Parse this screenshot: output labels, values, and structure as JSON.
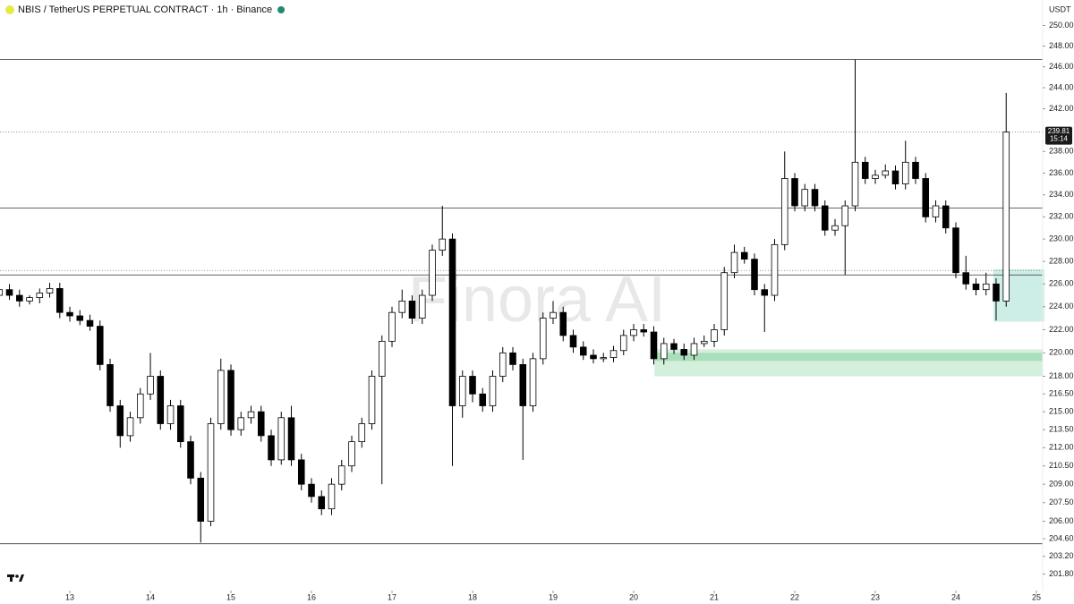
{
  "chart_data": {
    "type": "candlestick",
    "title": "NBIS / TetherUS PERPETUAL CONTRACT · 1h · Binance",
    "watermark": "Finora AI",
    "currency": "USDT",
    "countdown": "15:14",
    "log_scale": true,
    "up_color": "#ffffff",
    "down_color": "#000000",
    "x": [
      12.125,
      12.25,
      12.375,
      12.5,
      12.625,
      12.75,
      12.875,
      13,
      13.125,
      13.25,
      13.375,
      13.5,
      13.625,
      13.75,
      13.875,
      14,
      14.125,
      14.25,
      14.375,
      14.5,
      14.625,
      14.75,
      14.875,
      15,
      15.125,
      15.25,
      15.375,
      15.5,
      15.625,
      15.75,
      15.875,
      16,
      16.125,
      16.25,
      16.375,
      16.5,
      16.625,
      16.75,
      16.875,
      17,
      17.125,
      17.25,
      17.375,
      17.5,
      17.625,
      17.75,
      17.875,
      18,
      18.125,
      18.25,
      18.375,
      18.5,
      18.625,
      18.75,
      18.875,
      19,
      19.125,
      19.25,
      19.375,
      19.5,
      19.625,
      19.75,
      19.875,
      20,
      20.125,
      20.25,
      20.375,
      20.5,
      20.625,
      20.75,
      20.875,
      21,
      21.125,
      21.25,
      21.375,
      21.5,
      21.625,
      21.75,
      21.875,
      22,
      22.125,
      22.25,
      22.375,
      22.5,
      22.625,
      22.75,
      22.875,
      23,
      23.125,
      23.25,
      23.375,
      23.5,
      23.625,
      23.75,
      23.875,
      24,
      24.125,
      24.25,
      24.375,
      24.5,
      24.625
    ],
    "open": [
      225.0,
      225.5,
      225.0,
      224.5,
      224.8,
      225.2,
      225.6,
      223.5,
      223.2,
      222.8,
      222.3,
      219.0,
      215.5,
      213.0,
      214.5,
      216.5,
      218.0,
      214.0,
      215.5,
      212.5,
      209.5,
      206.0,
      214.0,
      218.5,
      213.5,
      214.5,
      215.0,
      213.0,
      211.0,
      214.5,
      211.0,
      209.0,
      208.0,
      207.0,
      209.0,
      210.5,
      212.5,
      214.0,
      218.0,
      221.0,
      223.5,
      224.5,
      223.0,
      225.0,
      229.0,
      230.0,
      215.5,
      218.0,
      216.5,
      215.5,
      218.0,
      220.0,
      219.0,
      215.5,
      219.5,
      223.0,
      223.5,
      221.5,
      220.5,
      219.8,
      219.5,
      219.6,
      220.2,
      221.5,
      222.0,
      221.8,
      219.5,
      220.8,
      220.3,
      219.8,
      220.8,
      221.0,
      222.0,
      227.0,
      228.8,
      228.2,
      225.5,
      225.0,
      229.5,
      235.5,
      233.0,
      234.5,
      233.0,
      230.8,
      231.2,
      233.0,
      237.0,
      235.5,
      235.8,
      236.2,
      235.0,
      237.0,
      235.5,
      232.0,
      233.0,
      231.0,
      227.0,
      226.0,
      225.5,
      226.0,
      224.5
    ],
    "high": [
      225.9,
      226.0,
      225.5,
      225.0,
      225.6,
      226.1,
      226.1,
      224.0,
      223.7,
      223.3,
      222.8,
      219.5,
      216.0,
      215.0,
      217.0,
      220.0,
      218.5,
      216.0,
      216.0,
      213.0,
      210.0,
      214.5,
      219.5,
      219.0,
      215.0,
      215.5,
      215.5,
      213.5,
      215.0,
      215.5,
      211.5,
      209.5,
      208.5,
      209.5,
      211.0,
      213.0,
      214.5,
      218.5,
      221.5,
      224.0,
      225.5,
      225.0,
      225.5,
      229.5,
      233.0,
      230.5,
      218.5,
      218.5,
      217.0,
      218.5,
      220.5,
      220.5,
      219.5,
      220.0,
      223.5,
      224.5,
      224.0,
      222.0,
      221.0,
      220.3,
      220.0,
      220.6,
      222.0,
      222.5,
      222.5,
      222.3,
      221.3,
      221.2,
      220.8,
      221.3,
      221.5,
      222.5,
      227.5,
      229.5,
      229.3,
      228.7,
      226.0,
      230.0,
      238.0,
      236.0,
      235.0,
      235.0,
      233.5,
      231.8,
      233.5,
      246.7,
      237.5,
      236.3,
      236.8,
      236.7,
      239.0,
      237.5,
      236.0,
      233.5,
      233.5,
      231.5,
      228.5,
      226.5,
      227.0,
      226.5,
      243.5
    ],
    "low": [
      224.6,
      224.6,
      224.0,
      224.2,
      224.3,
      224.8,
      223.0,
      222.7,
      222.4,
      221.9,
      218.5,
      215.0,
      212.0,
      212.5,
      214.0,
      216.0,
      213.5,
      213.5,
      212.0,
      209.0,
      204.3,
      205.6,
      213.5,
      213.0,
      213.0,
      214.0,
      212.5,
      210.5,
      210.6,
      210.5,
      208.5,
      207.5,
      206.5,
      206.5,
      208.5,
      210.0,
      212.0,
      213.5,
      209.0,
      220.5,
      223.0,
      222.5,
      222.5,
      224.5,
      228.5,
      210.5,
      214.5,
      215.8,
      215.0,
      215.0,
      217.5,
      218.5,
      211.0,
      215.0,
      219.0,
      222.5,
      221.0,
      220.0,
      219.4,
      219.1,
      219.2,
      219.2,
      219.8,
      221.0,
      221.4,
      219.0,
      219.0,
      219.9,
      219.4,
      219.4,
      220.5,
      220.5,
      221.5,
      226.5,
      227.8,
      225.0,
      221.8,
      224.5,
      229.0,
      232.5,
      232.5,
      232.5,
      230.3,
      230.3,
      226.8,
      232.5,
      235.0,
      235.0,
      235.5,
      234.5,
      234.5,
      235.0,
      231.5,
      231.5,
      230.5,
      226.5,
      225.5,
      225.0,
      225.0,
      222.8,
      224.0
    ],
    "close": [
      225.5,
      225.0,
      224.5,
      224.8,
      225.2,
      225.6,
      223.5,
      223.2,
      222.8,
      222.3,
      219.0,
      215.5,
      213.0,
      214.5,
      216.5,
      218.0,
      214.0,
      215.5,
      212.5,
      209.5,
      206.0,
      214.0,
      218.5,
      213.5,
      214.5,
      215.0,
      213.0,
      211.0,
      214.5,
      211.0,
      209.0,
      208.0,
      207.0,
      209.0,
      210.5,
      212.5,
      214.0,
      218.0,
      221.0,
      223.5,
      224.5,
      223.0,
      225.0,
      229.0,
      230.0,
      215.5,
      218.0,
      216.5,
      215.5,
      218.0,
      220.0,
      219.0,
      215.5,
      219.5,
      223.0,
      223.5,
      221.5,
      220.5,
      219.8,
      219.5,
      219.6,
      220.2,
      221.5,
      222.0,
      221.8,
      219.5,
      220.8,
      220.3,
      219.8,
      220.8,
      221.0,
      222.0,
      227.0,
      228.8,
      228.2,
      225.5,
      225.0,
      229.5,
      235.5,
      233.0,
      234.5,
      233.0,
      230.8,
      231.2,
      233.0,
      237.0,
      235.5,
      235.8,
      236.2,
      235.0,
      237.0,
      235.5,
      232.0,
      233.0,
      231.0,
      227.0,
      226.0,
      225.5,
      226.0,
      224.5,
      239.81
    ],
    "hlines": [
      246.7,
      232.8,
      226.8,
      204.2
    ],
    "dotted_lines": [
      239.81,
      227.2
    ],
    "zones": [
      {
        "x": [
          20.257,
          25.078
        ],
        "range": [
          218.0,
          220.3
        ],
        "color": "#d4efdc"
      },
      {
        "x": [
          20.257,
          25.078
        ],
        "range": [
          219.3,
          220.0
        ],
        "color": "#a9dfba"
      },
      {
        "x": [
          24.466,
          25.1
        ],
        "range": [
          222.7,
          227.3
        ],
        "color": "#cdeee7"
      }
    ],
    "xlim": [
      12.133,
      25.078
    ],
    "xticks": [
      13,
      14,
      15,
      16,
      17,
      18,
      19,
      20,
      21,
      22,
      23,
      24,
      25
    ],
    "ylim": [
      200.5,
      252.5
    ],
    "yticks": [
      {
        "value": 250,
        "label": "250.00"
      },
      {
        "value": 248,
        "label": "248.00"
      },
      {
        "value": 246,
        "label": "246.00"
      },
      {
        "value": 244,
        "label": "244.00"
      },
      {
        "value": 242,
        "label": "242.00"
      },
      {
        "value": 238,
        "label": "238.00"
      },
      {
        "value": 236,
        "label": "236.00"
      },
      {
        "value": 234,
        "label": "234.00"
      },
      {
        "value": 232,
        "label": "232.00"
      },
      {
        "value": 230,
        "label": "230.00"
      },
      {
        "value": 228,
        "label": "228.00"
      },
      {
        "value": 226,
        "label": "226.00"
      },
      {
        "value": 224,
        "label": "224.00"
      },
      {
        "value": 222,
        "label": "222.00"
      },
      {
        "value": 220,
        "label": "220.00"
      },
      {
        "value": 218,
        "label": "218.00"
      },
      {
        "value": 216.5,
        "label": "216.50"
      },
      {
        "value": 215,
        "label": "215.00"
      },
      {
        "value": 213.5,
        "label": "213.50"
      },
      {
        "value": 212,
        "label": "212.00"
      },
      {
        "value": 210.5,
        "label": "210.50"
      },
      {
        "value": 209,
        "label": "209.00"
      },
      {
        "value": 207.5,
        "label": "207.50"
      },
      {
        "value": 206,
        "label": "206.00"
      },
      {
        "value": 204.6,
        "label": "204.60"
      },
      {
        "value": 203.2,
        "label": "203.20"
      },
      {
        "value": 201.8,
        "label": "201.80"
      }
    ]
  }
}
